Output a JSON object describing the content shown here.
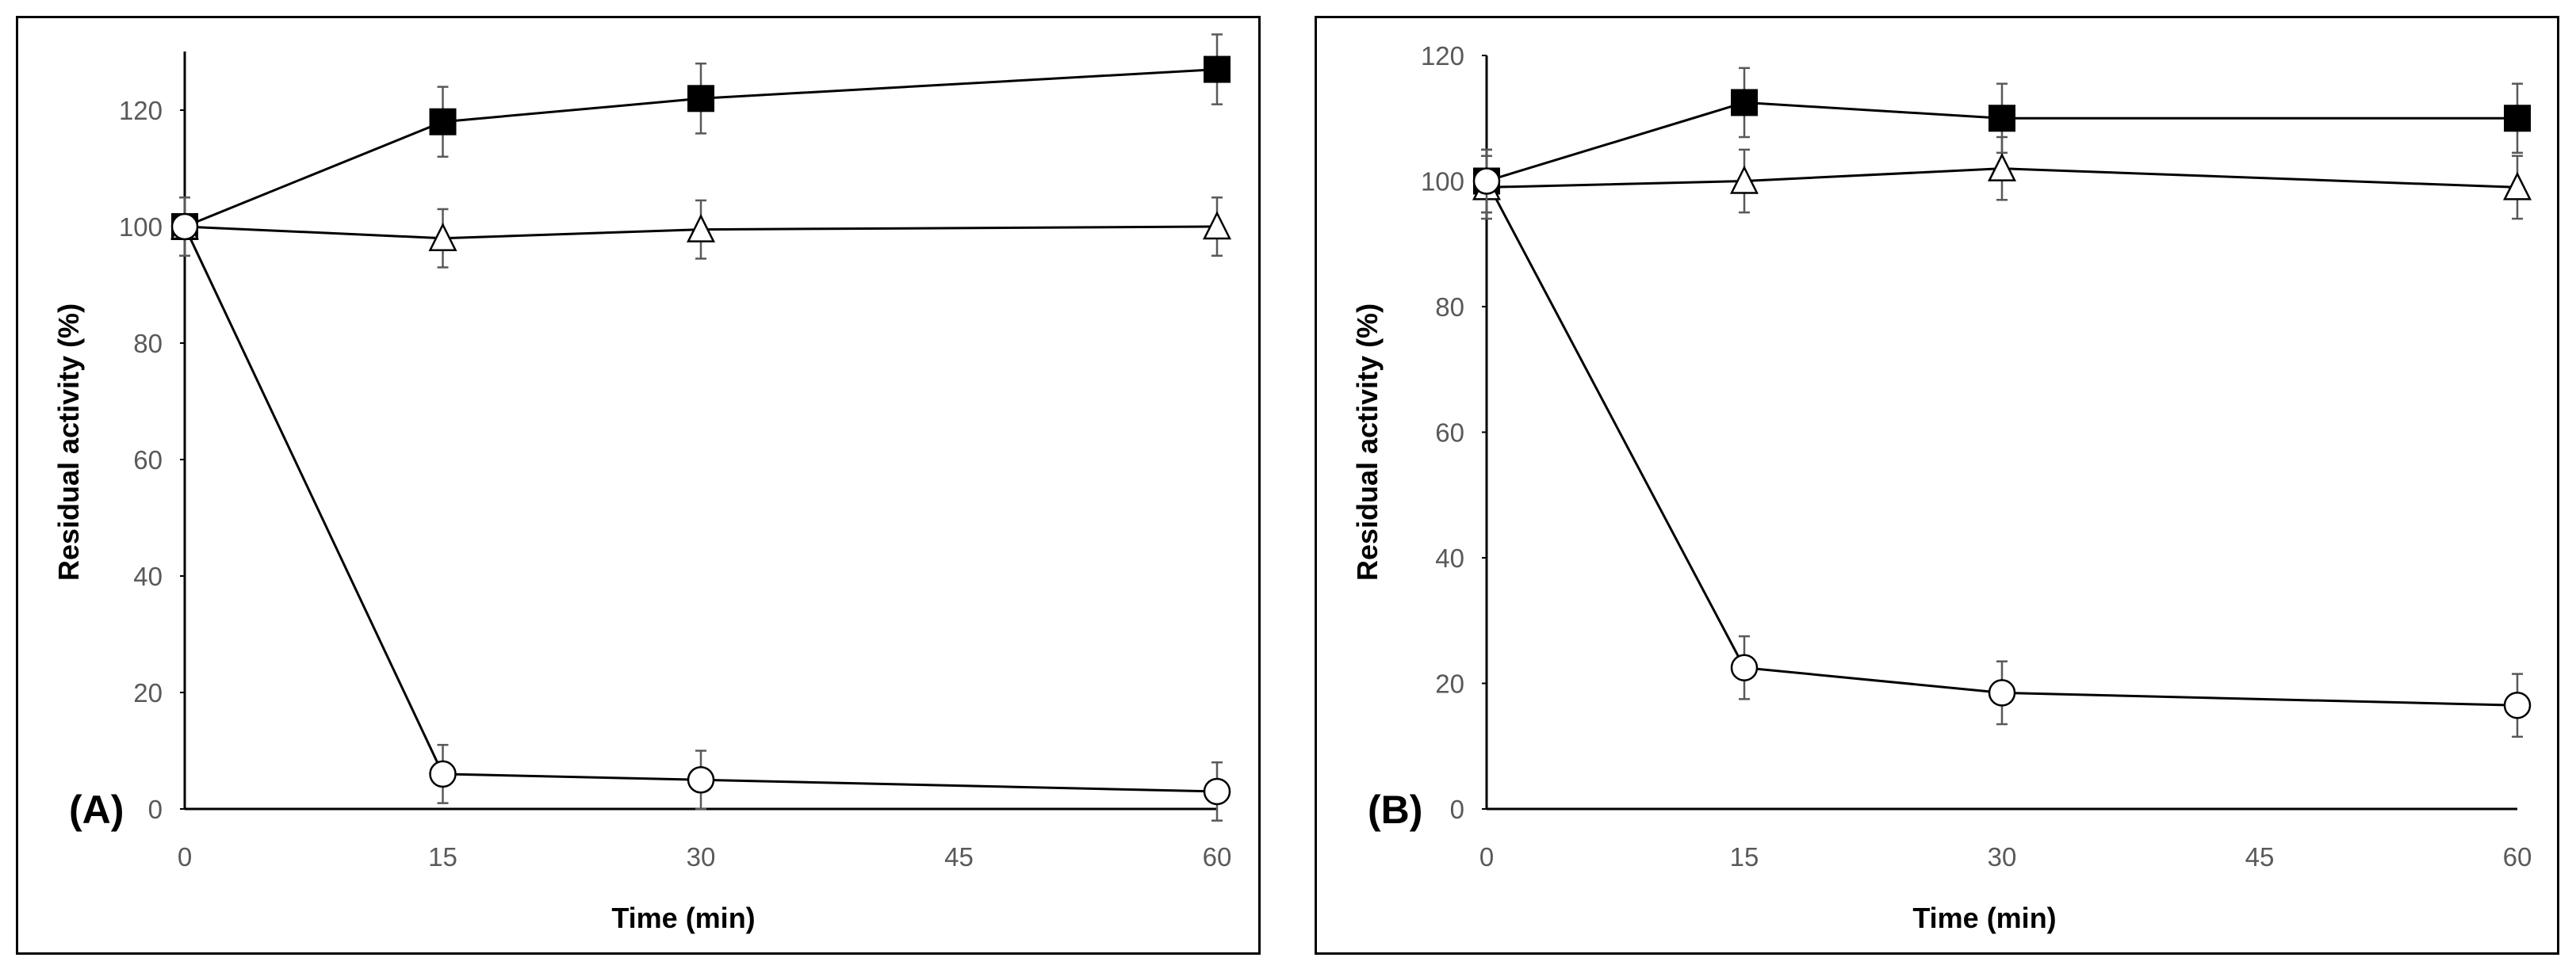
{
  "chart_data": [
    {
      "type": "line",
      "panel_label": "(A)",
      "xlabel": "Time (min)",
      "ylabel": "Residual activity (%)",
      "xlim": [
        0,
        60
      ],
      "ylim": [
        0,
        130
      ],
      "xticks": [
        0,
        15,
        30,
        45,
        60
      ],
      "yticks": [
        0,
        20,
        40,
        60,
        80,
        100,
        120
      ],
      "grid": false,
      "series": [
        {
          "marker": "filled-square",
          "x": [
            0,
            15,
            30,
            60
          ],
          "y": [
            100,
            118,
            122,
            127
          ],
          "error": [
            5,
            6,
            6,
            6
          ]
        },
        {
          "marker": "open-triangle",
          "x": [
            0,
            15,
            30,
            60
          ],
          "y": [
            100,
            98,
            99.5,
            100
          ],
          "error": [
            5,
            5,
            5,
            5
          ]
        },
        {
          "marker": "open-circle",
          "x": [
            0,
            15,
            30,
            60
          ],
          "y": [
            100,
            6,
            5,
            3
          ],
          "error": [
            5,
            5,
            5,
            5
          ]
        }
      ]
    },
    {
      "type": "line",
      "panel_label": "(B)",
      "xlabel": "Time (min)",
      "ylabel": "Residual activity (%)",
      "xlim": [
        0,
        60
      ],
      "ylim": [
        0,
        120
      ],
      "xticks": [
        0,
        15,
        30,
        45,
        60
      ],
      "yticks": [
        0,
        20,
        40,
        60,
        80,
        100,
        120
      ],
      "grid": false,
      "series": [
        {
          "marker": "filled-square",
          "x": [
            0,
            15,
            30,
            60
          ],
          "y": [
            100,
            112.5,
            110,
            110
          ],
          "error": [
            5,
            5.5,
            5.5,
            5.5
          ]
        },
        {
          "marker": "open-triangle",
          "x": [
            0,
            15,
            30,
            60
          ],
          "y": [
            99,
            100,
            102,
            99
          ],
          "error": [
            5,
            5,
            5,
            5
          ]
        },
        {
          "marker": "open-circle",
          "x": [
            0,
            15,
            30,
            60
          ],
          "y": [
            100,
            22.5,
            18.5,
            16.5
          ],
          "error": [
            5,
            5,
            5,
            5
          ]
        }
      ]
    }
  ]
}
